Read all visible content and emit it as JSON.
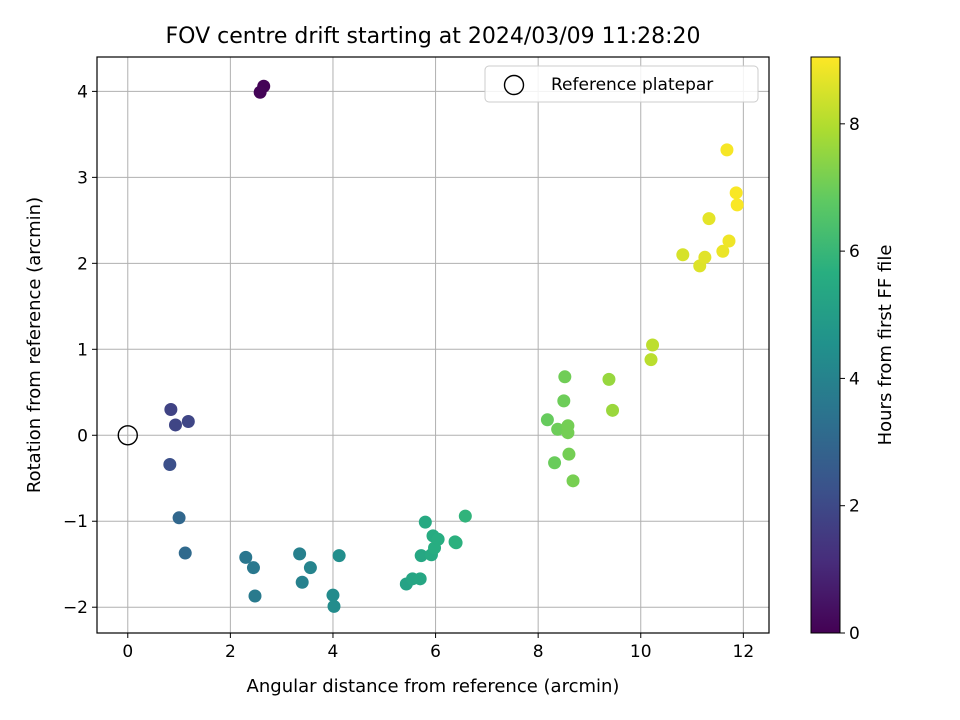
{
  "chart_data": {
    "type": "scatter",
    "title": "FOV centre drift starting at 2024/03/09 11:28:20",
    "xlabel": "Angular distance from reference (arcmin)",
    "ylabel": "Rotation from reference (arcmin)",
    "xlim": [
      -0.6,
      12.5
    ],
    "ylim": [
      -2.3,
      4.4
    ],
    "xticks": [
      0,
      2,
      4,
      6,
      8,
      10,
      12
    ],
    "yticks": [
      -2,
      -1,
      0,
      1,
      2,
      3,
      4
    ],
    "xtick_labels": [
      "0",
      "2",
      "4",
      "6",
      "8",
      "10",
      "12"
    ],
    "ytick_labels": [
      "−2",
      "−1",
      "0",
      "1",
      "2",
      "3",
      "4"
    ],
    "grid": true,
    "legend": {
      "position": "top-right",
      "entries": [
        "Reference platepar"
      ]
    },
    "reference_point": {
      "x": 0,
      "y": 0,
      "marker": "open-circle"
    },
    "colorbar": {
      "label": "Hours from first FF file",
      "colormap": "viridis",
      "range": [
        0,
        9.05
      ],
      "ticks": [
        0,
        2,
        4,
        6,
        8
      ],
      "tick_labels": [
        "0",
        "2",
        "4",
        "6",
        "8"
      ]
    },
    "points": [
      {
        "x": 2.65,
        "y": 4.06,
        "h": 0.05
      },
      {
        "x": 2.58,
        "y": 3.99,
        "h": 0.1
      },
      {
        "x": 0.84,
        "y": 0.3,
        "h": 1.8
      },
      {
        "x": 0.93,
        "y": 0.12,
        "h": 1.85
      },
      {
        "x": 1.18,
        "y": 0.16,
        "h": 1.9
      },
      {
        "x": 0.82,
        "y": -0.34,
        "h": 2.2
      },
      {
        "x": 1.0,
        "y": -0.96,
        "h": 3.0
      },
      {
        "x": 1.12,
        "y": -1.37,
        "h": 3.1
      },
      {
        "x": 2.3,
        "y": -1.42,
        "h": 3.55
      },
      {
        "x": 2.45,
        "y": -1.54,
        "h": 3.6
      },
      {
        "x": 2.48,
        "y": -1.87,
        "h": 3.7
      },
      {
        "x": 3.35,
        "y": -1.38,
        "h": 3.9
      },
      {
        "x": 3.4,
        "y": -1.71,
        "h": 3.95
      },
      {
        "x": 3.56,
        "y": -1.54,
        "h": 4.05
      },
      {
        "x": 4.0,
        "y": -1.86,
        "h": 4.3
      },
      {
        "x": 4.02,
        "y": -1.99,
        "h": 4.35
      },
      {
        "x": 4.12,
        "y": -1.4,
        "h": 4.4
      },
      {
        "x": 5.43,
        "y": -1.73,
        "h": 5.2
      },
      {
        "x": 5.55,
        "y": -1.67,
        "h": 5.3
      },
      {
        "x": 5.7,
        "y": -1.67,
        "h": 5.35
      },
      {
        "x": 5.72,
        "y": -1.4,
        "h": 5.4
      },
      {
        "x": 5.8,
        "y": -1.01,
        "h": 5.45
      },
      {
        "x": 5.92,
        "y": -1.39,
        "h": 5.5
      },
      {
        "x": 5.95,
        "y": -1.17,
        "h": 5.55
      },
      {
        "x": 5.98,
        "y": -1.31,
        "h": 5.6
      },
      {
        "x": 6.05,
        "y": -1.21,
        "h": 5.6
      },
      {
        "x": 6.38,
        "y": -1.24,
        "h": 5.7
      },
      {
        "x": 6.4,
        "y": -1.25,
        "h": 5.75
      },
      {
        "x": 6.58,
        "y": -0.94,
        "h": 5.85
      },
      {
        "x": 8.18,
        "y": 0.18,
        "h": 6.9
      },
      {
        "x": 8.32,
        "y": -0.32,
        "h": 6.95
      },
      {
        "x": 8.38,
        "y": 0.07,
        "h": 7.0
      },
      {
        "x": 8.5,
        "y": 0.4,
        "h": 7.0
      },
      {
        "x": 8.52,
        "y": 0.68,
        "h": 7.05
      },
      {
        "x": 8.56,
        "y": 0.06,
        "h": 7.05
      },
      {
        "x": 8.58,
        "y": 0.03,
        "h": 7.1
      },
      {
        "x": 8.58,
        "y": 0.11,
        "h": 7.1
      },
      {
        "x": 8.6,
        "y": -0.22,
        "h": 7.1
      },
      {
        "x": 8.68,
        "y": -0.53,
        "h": 7.15
      },
      {
        "x": 9.38,
        "y": 0.65,
        "h": 7.6
      },
      {
        "x": 9.45,
        "y": 0.29,
        "h": 7.65
      },
      {
        "x": 10.2,
        "y": 0.88,
        "h": 8.1
      },
      {
        "x": 10.23,
        "y": 1.05,
        "h": 8.15
      },
      {
        "x": 10.82,
        "y": 2.1,
        "h": 8.5
      },
      {
        "x": 11.15,
        "y": 1.97,
        "h": 8.6
      },
      {
        "x": 11.25,
        "y": 2.07,
        "h": 8.65
      },
      {
        "x": 11.33,
        "y": 2.52,
        "h": 8.7
      },
      {
        "x": 11.6,
        "y": 2.14,
        "h": 8.8
      },
      {
        "x": 11.68,
        "y": 3.32,
        "h": 8.95
      },
      {
        "x": 11.72,
        "y": 2.26,
        "h": 8.85
      },
      {
        "x": 11.86,
        "y": 2.82,
        "h": 9.0
      },
      {
        "x": 11.88,
        "y": 2.68,
        "h": 9.0
      }
    ]
  }
}
